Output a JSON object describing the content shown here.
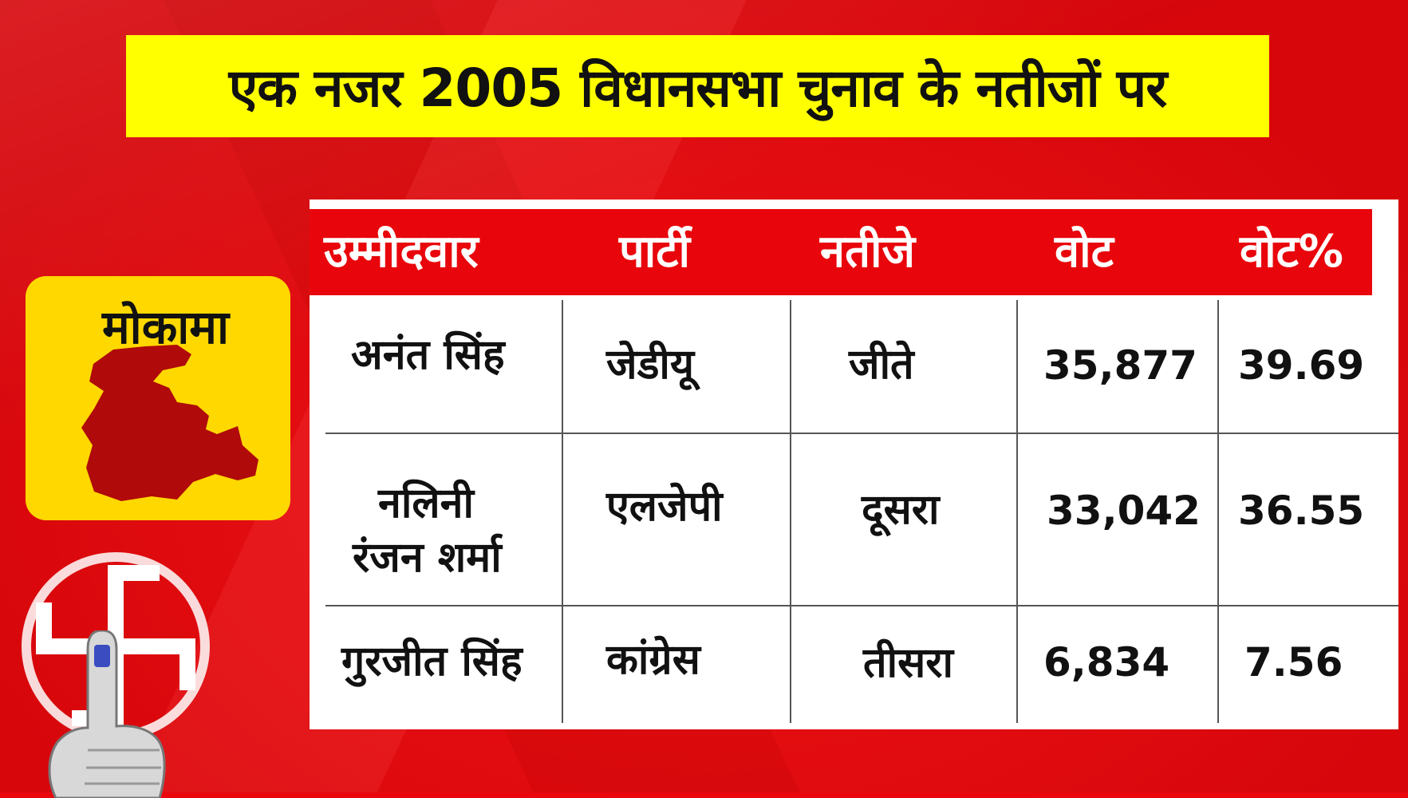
{
  "title": "एक नजर 2005 विधानसभा चुनाव के नतीजों पर",
  "constituency": "मोकामा",
  "table": {
    "headers": [
      "उम्मीदवार",
      "पार्टी",
      "नतीजे",
      "वोट",
      "वोट%"
    ],
    "rows": [
      {
        "candidate_line1": "अनंत सिंह",
        "candidate_line2": "",
        "party": "जेडीयू",
        "result": "जीते",
        "votes": "35,877",
        "vote_pct": "39.69"
      },
      {
        "candidate_line1": "नलिनी",
        "candidate_line2": "रंजन शर्मा",
        "party": "एलजेपी",
        "result": "दूसरा",
        "votes": "33,042",
        "vote_pct": "36.55"
      },
      {
        "candidate_line1": "गुरजीत सिंह",
        "candidate_line2": "",
        "party": "कांग्रेस",
        "result": "तीसरा",
        "votes": "6,834",
        "vote_pct": "7.56"
      }
    ]
  },
  "colors": {
    "background": "#e9070d",
    "banner": "#ffff00",
    "card": "#ffd800",
    "map": "#b00a0a",
    "header": "#e8060c"
  },
  "icons": [
    "constituency-map-icon",
    "election-swastika-symbol-icon",
    "inked-finger-icon"
  ]
}
